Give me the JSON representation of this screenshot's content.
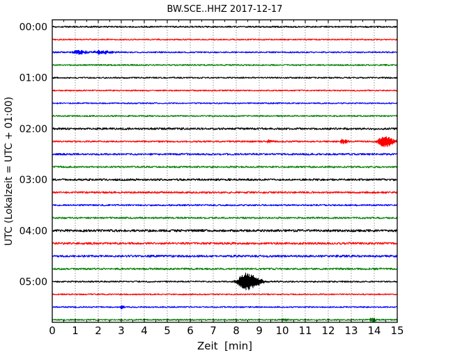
{
  "chart_data": {
    "type": "line",
    "subtype": "seismogram-day-plot",
    "title": "BW.SCE..HHZ 2017-12-17",
    "xlabel": "Zeit  [min]",
    "ylabel": "UTC (Lokalzeit = UTC + 01:00)",
    "xlim": [
      0,
      15
    ],
    "x_ticks": [
      0,
      1,
      2,
      3,
      4,
      5,
      6,
      7,
      8,
      9,
      10,
      11,
      12,
      13,
      14,
      15
    ],
    "x_minor_tick_step": 0.5,
    "grid": {
      "vertical": true,
      "horizontal": false,
      "style": "dotted"
    },
    "minutes_per_row": 15,
    "trace_color_cycle": [
      "#000000",
      "#ff0000",
      "#0000ff",
      "#007f00"
    ],
    "hour_tick_labels": [
      "00:00",
      "01:00",
      "02:00",
      "03:00",
      "04:00",
      "05:00"
    ],
    "traces": [
      {
        "utc": "00:00",
        "color": "#000000",
        "noise": 1.0,
        "events": []
      },
      {
        "utc": "00:15",
        "color": "#ff0000",
        "noise": 0.9,
        "events": []
      },
      {
        "utc": "00:30",
        "color": "#0000ff",
        "noise": 1.0,
        "events": [
          {
            "t": 1.1,
            "rise": 0.12,
            "decay": 0.28,
            "amp": 3.0
          },
          {
            "t": 2.05,
            "rise": 0.15,
            "decay": 0.38,
            "amp": 2.6
          }
        ]
      },
      {
        "utc": "00:45",
        "color": "#007f00",
        "noise": 1.0,
        "events": []
      },
      {
        "utc": "01:00",
        "color": "#000000",
        "noise": 1.0,
        "events": []
      },
      {
        "utc": "01:15",
        "color": "#ff0000",
        "noise": 0.9,
        "events": []
      },
      {
        "utc": "01:30",
        "color": "#0000ff",
        "noise": 0.9,
        "events": []
      },
      {
        "utc": "01:45",
        "color": "#007f00",
        "noise": 1.0,
        "events": []
      },
      {
        "utc": "02:00",
        "color": "#000000",
        "noise": 1.4,
        "events": []
      },
      {
        "utc": "02:15",
        "color": "#ff0000",
        "noise": 1.1,
        "events": [
          {
            "t": 9.4,
            "rise": 0.05,
            "decay": 0.12,
            "amp": 2.2
          },
          {
            "t": 12.62,
            "rise": 0.07,
            "decay": 0.16,
            "amp": 3.4
          },
          {
            "t": 14.42,
            "rise": 0.16,
            "decay": 0.3,
            "amp": 8.0
          }
        ]
      },
      {
        "utc": "02:30",
        "color": "#0000ff",
        "noise": 1.3,
        "events": []
      },
      {
        "utc": "02:45",
        "color": "#007f00",
        "noise": 1.2,
        "events": []
      },
      {
        "utc": "03:00",
        "color": "#000000",
        "noise": 1.4,
        "events": []
      },
      {
        "utc": "03:15",
        "color": "#ff0000",
        "noise": 1.3,
        "events": []
      },
      {
        "utc": "03:30",
        "color": "#0000ff",
        "noise": 1.1,
        "events": []
      },
      {
        "utc": "03:45",
        "color": "#007f00",
        "noise": 1.2,
        "events": []
      },
      {
        "utc": "04:00",
        "color": "#000000",
        "noise": 1.7,
        "events": []
      },
      {
        "utc": "04:15",
        "color": "#ff0000",
        "noise": 1.5,
        "events": []
      },
      {
        "utc": "04:30",
        "color": "#0000ff",
        "noise": 1.5,
        "events": []
      },
      {
        "utc": "04:45",
        "color": "#007f00",
        "noise": 1.3,
        "events": []
      },
      {
        "utc": "05:00",
        "color": "#000000",
        "noise": 1.0,
        "events": [
          {
            "t": 8.38,
            "rise": 0.2,
            "decay": 0.42,
            "amp": 12.5
          }
        ]
      },
      {
        "utc": "05:15",
        "color": "#ff0000",
        "noise": 0.9,
        "events": []
      },
      {
        "utc": "05:30",
        "color": "#0000ff",
        "noise": 0.9,
        "events": [
          {
            "t": 3.0,
            "rise": 0.05,
            "decay": 0.12,
            "amp": 2.2
          }
        ]
      },
      {
        "utc": "05:45",
        "color": "#007f00",
        "noise": 1.0,
        "events": [
          {
            "t": 10.1,
            "rise": 0.05,
            "decay": 0.1,
            "amp": 2.6
          },
          {
            "t": 13.9,
            "rise": 0.07,
            "decay": 0.14,
            "amp": 3.0
          }
        ]
      }
    ]
  }
}
